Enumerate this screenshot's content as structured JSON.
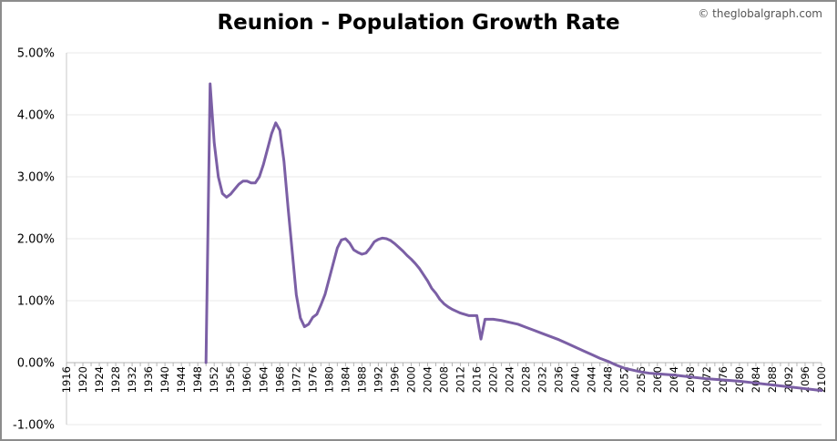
{
  "credit": "© theglobalgraph.com",
  "chart_data": {
    "type": "line",
    "title": "Reunion - Population Growth Rate",
    "xlabel": "",
    "ylabel": "",
    "xlim": [
      1916,
      2100
    ],
    "ylim": [
      -1,
      5
    ],
    "y_ticks": [
      "-1.00%",
      "0.00%",
      "1.00%",
      "2.00%",
      "3.00%",
      "4.00%",
      "5.00%"
    ],
    "x_ticks": [
      "1916",
      "1920",
      "1924",
      "1928",
      "1932",
      "1936",
      "1940",
      "1944",
      "1948",
      "1952",
      "1956",
      "1960",
      "1964",
      "1968",
      "1972",
      "1976",
      "1980",
      "1984",
      "1988",
      "1992",
      "1996",
      "2000",
      "2004",
      "2008",
      "2012",
      "2016",
      "2020",
      "2024",
      "2028",
      "2032",
      "2036",
      "2040",
      "2044",
      "2048",
      "2052",
      "2056",
      "2060",
      "2064",
      "2068",
      "2072",
      "2076",
      "2080",
      "2084",
      "2088",
      "2092",
      "2096",
      "2100"
    ],
    "grid": true,
    "line_color": "#7b5fa5",
    "series": [
      {
        "x": [
          1950,
          1951,
          1952,
          1953,
          1954,
          1955,
          1956,
          1957,
          1958,
          1959,
          1960,
          1961,
          1962,
          1963,
          1964,
          1965,
          1966,
          1967,
          1968,
          1969,
          1970,
          1971,
          1972,
          1973,
          1974,
          1975,
          1976,
          1977,
          1978,
          1979,
          1980,
          1981,
          1982,
          1983,
          1984,
          1985,
          1986,
          1987,
          1988,
          1989,
          1990,
          1991,
          1992,
          1993,
          1994,
          1995,
          1996,
          1997,
          1998,
          1999,
          2000,
          2001,
          2002,
          2003,
          2004,
          2005,
          2006,
          2007,
          2008,
          2009,
          2010,
          2011,
          2012,
          2013,
          2014,
          2015,
          2016,
          2017,
          2018,
          2019,
          2020,
          2022,
          2024,
          2026,
          2028,
          2030,
          2032,
          2034,
          2036,
          2038,
          2040,
          2042,
          2044,
          2046,
          2048,
          2050,
          2052,
          2054,
          2056,
          2058,
          2060,
          2064,
          2068,
          2072,
          2076,
          2080,
          2084,
          2088,
          2092,
          2096,
          2100
        ],
        "values": [
          0.0,
          4.5,
          3.55,
          3.0,
          2.73,
          2.67,
          2.72,
          2.8,
          2.88,
          2.93,
          2.93,
          2.9,
          2.9,
          3.0,
          3.2,
          3.45,
          3.7,
          3.87,
          3.75,
          3.25,
          2.5,
          1.8,
          1.1,
          0.72,
          0.58,
          0.62,
          0.73,
          0.78,
          0.93,
          1.1,
          1.35,
          1.6,
          1.85,
          1.98,
          2.0,
          1.93,
          1.82,
          1.78,
          1.75,
          1.77,
          1.85,
          1.95,
          1.99,
          2.01,
          2.0,
          1.97,
          1.92,
          1.86,
          1.8,
          1.73,
          1.67,
          1.6,
          1.52,
          1.42,
          1.32,
          1.2,
          1.12,
          1.02,
          0.95,
          0.9,
          0.86,
          0.83,
          0.8,
          0.78,
          0.76,
          0.76,
          0.76,
          0.38,
          0.7,
          0.7,
          0.7,
          0.68,
          0.65,
          0.62,
          0.57,
          0.52,
          0.47,
          0.42,
          0.37,
          0.31,
          0.25,
          0.19,
          0.13,
          0.07,
          0.02,
          -0.04,
          -0.09,
          -0.12,
          -0.15,
          -0.17,
          -0.18,
          -0.2,
          -0.23,
          -0.26,
          -0.28,
          -0.3,
          -0.33,
          -0.36,
          -0.39,
          -0.42,
          -0.45
        ]
      }
    ]
  }
}
